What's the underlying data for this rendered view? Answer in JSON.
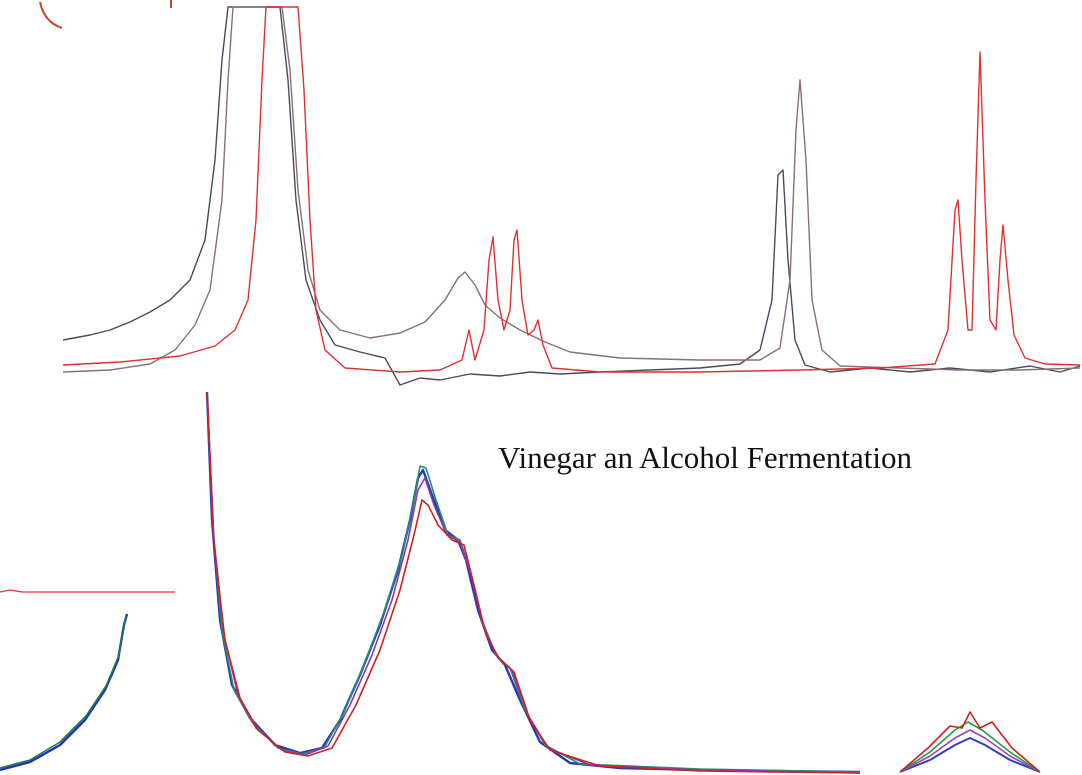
{
  "caption": "Vinegar an Alcohol Fermentation"
}
